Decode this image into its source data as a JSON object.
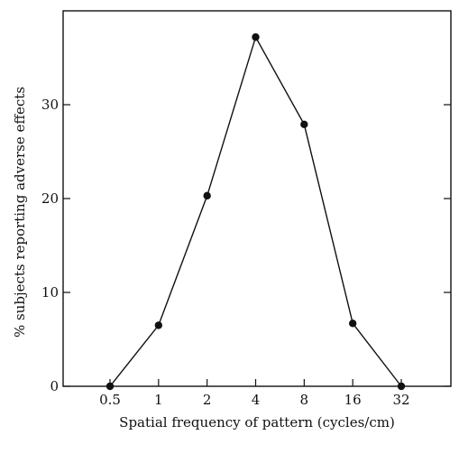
{
  "chart_data": {
    "type": "line",
    "title": "",
    "xlabel": "Spatial frequency of pattern (cycles/cm)",
    "ylabel": "% subjects reporting adverse effects",
    "x_scale": "log",
    "categories": [
      "0.5",
      "1",
      "2",
      "4",
      "8",
      "16",
      "32"
    ],
    "x": [
      0.5,
      1,
      2,
      4,
      8,
      16,
      32
    ],
    "series": [
      {
        "values": [
          0,
          6.5,
          20.3,
          37.2,
          27.9,
          6.7,
          0
        ]
      }
    ],
    "yticks": [
      "0",
      "10",
      "20",
      "30"
    ],
    "ylim": [
      0,
      40
    ],
    "grid": false,
    "legend": "none",
    "colors": {
      "line": "#111111",
      "marker": "#111111",
      "axis": "#111111"
    }
  }
}
